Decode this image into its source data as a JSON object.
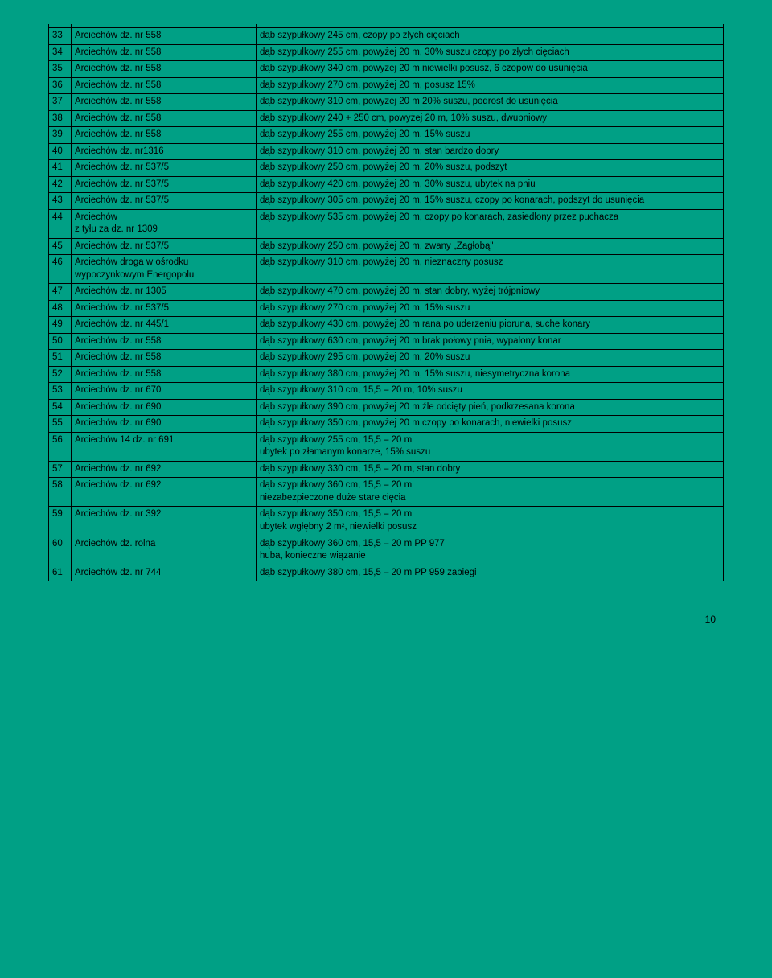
{
  "rows": [
    {
      "n": "33",
      "loc": "Arciechów dz. nr 558",
      "desc": "dąb szypułkowy  245 cm, czopy po złych cięciach"
    },
    {
      "n": "34",
      "loc": "Arciechów dz. nr 558",
      "desc": "dąb szypułkowy  255 cm, powyżej 20 m, 30% suszu czopy po złych cięciach"
    },
    {
      "n": "35",
      "loc": "Arciechów dz. nr 558",
      "desc": "dąb szypułkowy  340 cm, powyżej 20 m niewielki posusz, 6 czopów do usunięcia"
    },
    {
      "n": "36",
      "loc": "Arciechów dz. nr 558",
      "desc": "dąb szypułkowy  270 cm, powyżej 20 m, posusz 15%"
    },
    {
      "n": "37",
      "loc": "Arciechów dz. nr 558",
      "desc": "dąb szypułkowy  310 cm, powyżej 20 m 20% suszu, podrost do usunięcia"
    },
    {
      "n": "38",
      "loc": "Arciechów dz. nr 558",
      "desc": "dąb szypułkowy  240 + 250  cm, powyżej 20 m, 10% suszu, dwupniowy"
    },
    {
      "n": "39",
      "loc": "Arciechów dz. nr 558",
      "desc": "dąb szypułkowy  255 cm, powyżej 20 m, 15% suszu"
    },
    {
      "n": "40",
      "loc": "Arciechów dz. nr1316",
      "desc": "dąb szypułkowy  310 cm, powyżej 20 m, stan bardzo dobry"
    },
    {
      "n": "41",
      "loc": "Arciechów dz. nr 537/5",
      "desc": "dąb szypułkowy  250 cm, powyżej 20 m, 20% suszu, podszyt"
    },
    {
      "n": "42",
      "loc": "Arciechów dz. nr 537/5",
      "desc": "dąb szypułkowy  420 cm, powyżej 20 m, 30% suszu, ubytek na pniu"
    },
    {
      "n": "43",
      "loc": "Arciechów dz. nr 537/5",
      "desc": "dąb szypułkowy  305 cm, powyżej 20 m, 15% suszu, czopy po konarach, podszyt do usunięcia"
    },
    {
      "n": "44",
      "loc": "Arciechów\nz tyłu za dz. nr 1309",
      "desc": "dąb szypułkowy  535 cm, powyżej 20 m, czopy po konarach, zasiedlony przez puchacza"
    },
    {
      "n": "45",
      "loc": "Arciechów dz. nr 537/5",
      "desc": "dąb szypułkowy  250 cm, powyżej 20 m, zwany „Zagłobą\""
    },
    {
      "n": "46",
      "loc": "Arciechów  droga w ośrodku wypoczynkowym Energopolu",
      "desc": "dąb szypułkowy  310 cm, powyżej 20 m, nieznaczny posusz"
    },
    {
      "n": "47",
      "loc": "Arciechów dz. nr 1305",
      "desc": "dąb szypułkowy  470 cm, powyżej 20 m, stan dobry, wyżej trójpniowy"
    },
    {
      "n": "48",
      "loc": "Arciechów dz. nr 537/5",
      "desc": "dąb szypułkowy  270 cm, powyżej 20 m, 15% suszu"
    },
    {
      "n": "49",
      "loc": "Arciechów dz. nr 445/1",
      "desc": "dąb szypułkowy  430 cm, powyżej 20 m rana po uderzeniu pioruna, suche konary"
    },
    {
      "n": "50",
      "loc": "Arciechów dz. nr 558",
      "desc": "dąb szypułkowy  630 cm, powyżej 20 m brak połowy pnia, wypalony konar"
    },
    {
      "n": "51",
      "loc": "Arciechów dz. nr 558",
      "desc": "dąb szypułkowy  295 cm, powyżej 20 m, 20% suszu"
    },
    {
      "n": "52",
      "loc": "Arciechów dz. nr 558",
      "desc": "dąb szypułkowy  380 cm, powyżej 20 m, 15% suszu, niesymetryczna korona"
    },
    {
      "n": "53",
      "loc": "Arciechów dz. nr 670",
      "desc": "dąb szypułkowy  310 cm, 15,5 – 20 m, 10% suszu"
    },
    {
      "n": "54",
      "loc": "Arciechów dz. nr 690",
      "desc": "dąb szypułkowy  390 cm, powyżej 20 m źle odcięty pień, podkrzesana korona"
    },
    {
      "n": "55",
      "loc": "Arciechów dz. nr 690",
      "desc": "dąb szypułkowy  350 cm, powyżej 20 m czopy po konarach, niewielki posusz"
    },
    {
      "n": "56",
      "loc": "Arciechów 14 dz. nr 691",
      "desc": "dąb szypułkowy  255 cm, 15,5 – 20 m\nubytek po złamanym konarze, 15% suszu"
    },
    {
      "n": "57",
      "loc": "Arciechów dz. nr 692",
      "desc": "dąb szypułkowy  330 cm, 15,5 – 20 m, stan dobry"
    },
    {
      "n": "58",
      "loc": "Arciechów dz. nr 692",
      "desc": "dąb szypułkowy  360 cm, 15,5 – 20 m\nniezabezpieczone duże stare cięcia"
    },
    {
      "n": "59",
      "loc": "Arciechów dz. nr 392",
      "desc": "dąb szypułkowy  350 cm, 15,5 – 20 m\nubytek wgłębny 2 m², niewielki posusz"
    },
    {
      "n": "60",
      "loc": "Arciechów dz. rolna",
      "desc": "dąb szypułkowy  360 cm, 15,5 – 20 m   PP 977\nhuba, konieczne wiązanie"
    },
    {
      "n": "61",
      "loc": "Arciechów dz. nr 744",
      "desc": "dąb szypułkowy  380 cm, 15,5 – 20 m  PP 959 zabiegi"
    }
  ],
  "pageNumber": "10"
}
